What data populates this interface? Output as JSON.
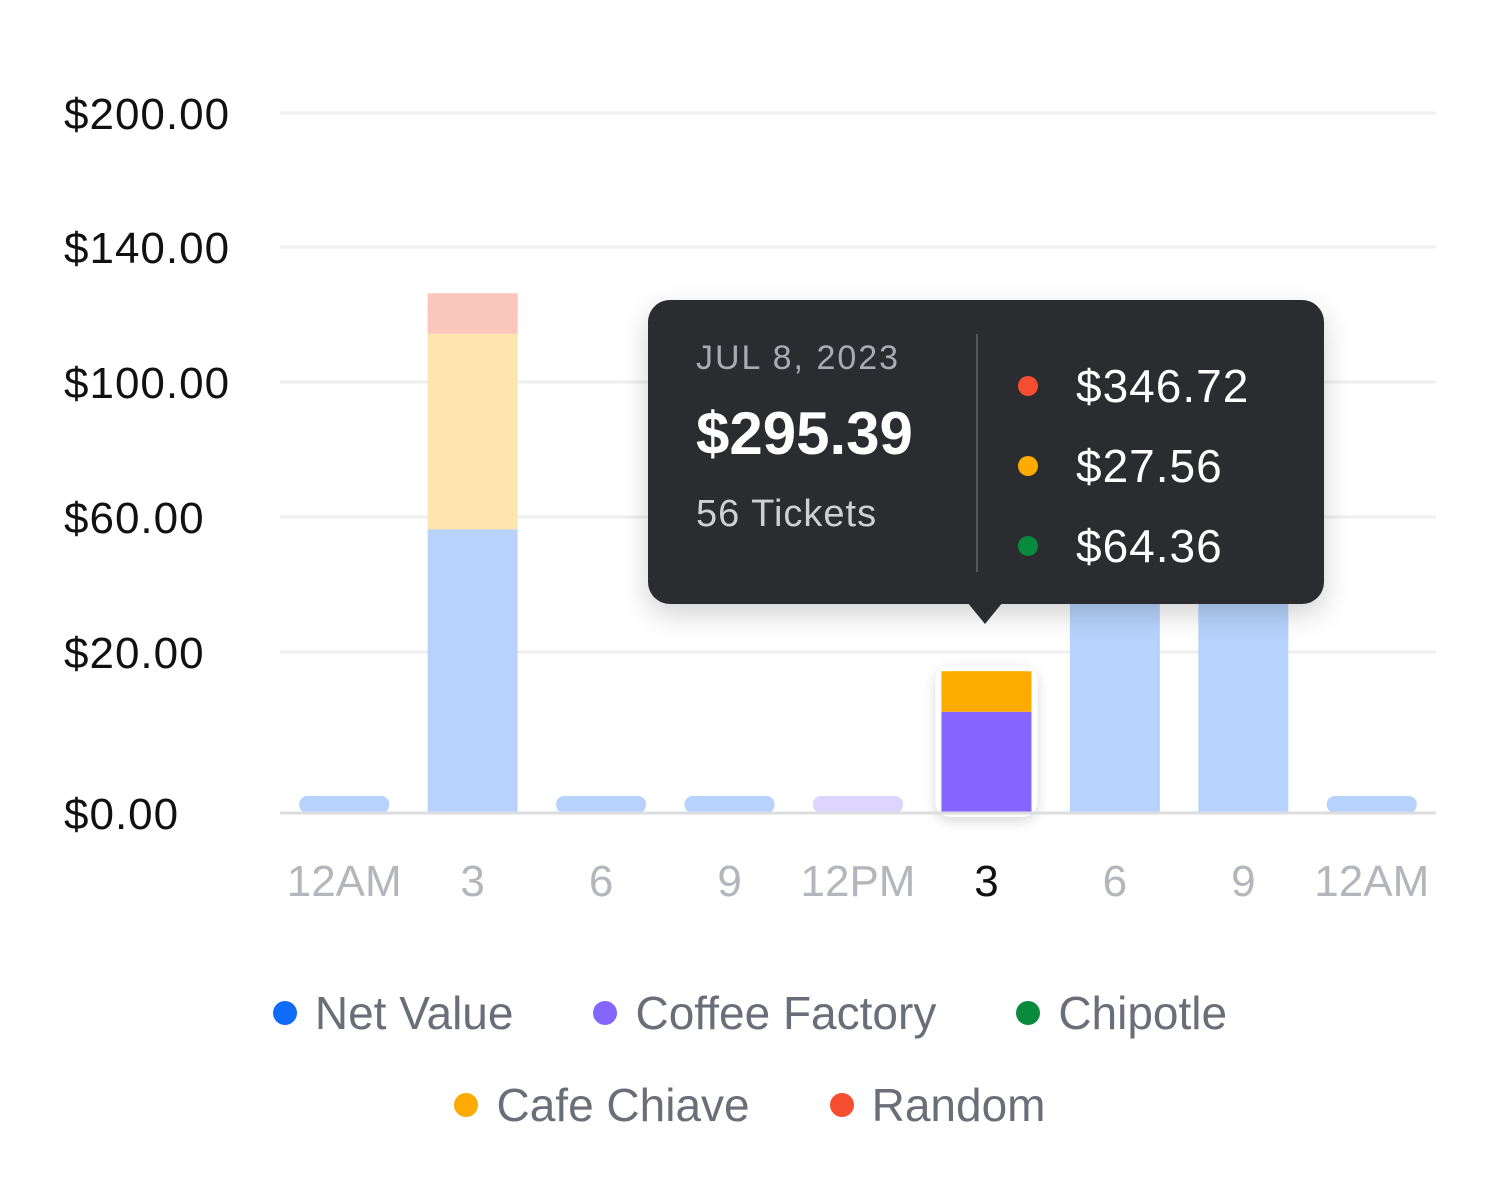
{
  "chart_data": {
    "type": "bar",
    "stacked": true,
    "y_ticks": [
      "$200.00",
      "$140.00",
      "$100.00",
      "$60.00",
      "$20.00",
      "$0.00"
    ],
    "categories": [
      "12AM",
      "3",
      "6",
      "9",
      "12PM",
      "3",
      "6",
      "9",
      "12AM"
    ],
    "active_index": 5,
    "series": [
      {
        "name": "Net Value",
        "color": "#0f6cf7",
        "values": [
          0,
          42,
          0,
          0,
          0,
          0,
          68,
          68,
          0
        ]
      },
      {
        "name": "Coffee Factory",
        "color": "#8466ff",
        "values": [
          0,
          0,
          0,
          0,
          0,
          15,
          0,
          0,
          0
        ]
      },
      {
        "name": "Chipotle",
        "color": "#078a3c",
        "values": [
          0,
          0,
          0,
          0,
          0,
          0,
          0,
          0,
          0
        ]
      },
      {
        "name": "Cafe Chiave",
        "color": "#fdab00",
        "values": [
          0,
          29,
          0,
          0,
          0,
          6,
          0,
          0,
          0
        ]
      },
      {
        "name": "Random",
        "color": "#f44d2f",
        "values": [
          0,
          6,
          0,
          0,
          0,
          0,
          0,
          0,
          0
        ]
      }
    ],
    "legend_position": "bottom",
    "grid": true
  },
  "tooltip": {
    "date": "JUL 8, 2023",
    "total": "$295.39",
    "tickets": "56 Tickets",
    "rows": [
      {
        "value": "$346.72",
        "color": "#f44d2f"
      },
      {
        "value": "$27.56",
        "color": "#fdab00"
      },
      {
        "value": "$64.36",
        "color": "#078a3c"
      }
    ]
  },
  "legend": {
    "items": [
      {
        "label": "Net Value",
        "color": "#0f6cf7"
      },
      {
        "label": "Coffee Factory",
        "color": "#8466ff"
      },
      {
        "label": "Chipotle",
        "color": "#078a3c"
      },
      {
        "label": "Cafe Chiave",
        "color": "#fdab00"
      },
      {
        "label": "Random",
        "color": "#f44d2f"
      }
    ]
  }
}
